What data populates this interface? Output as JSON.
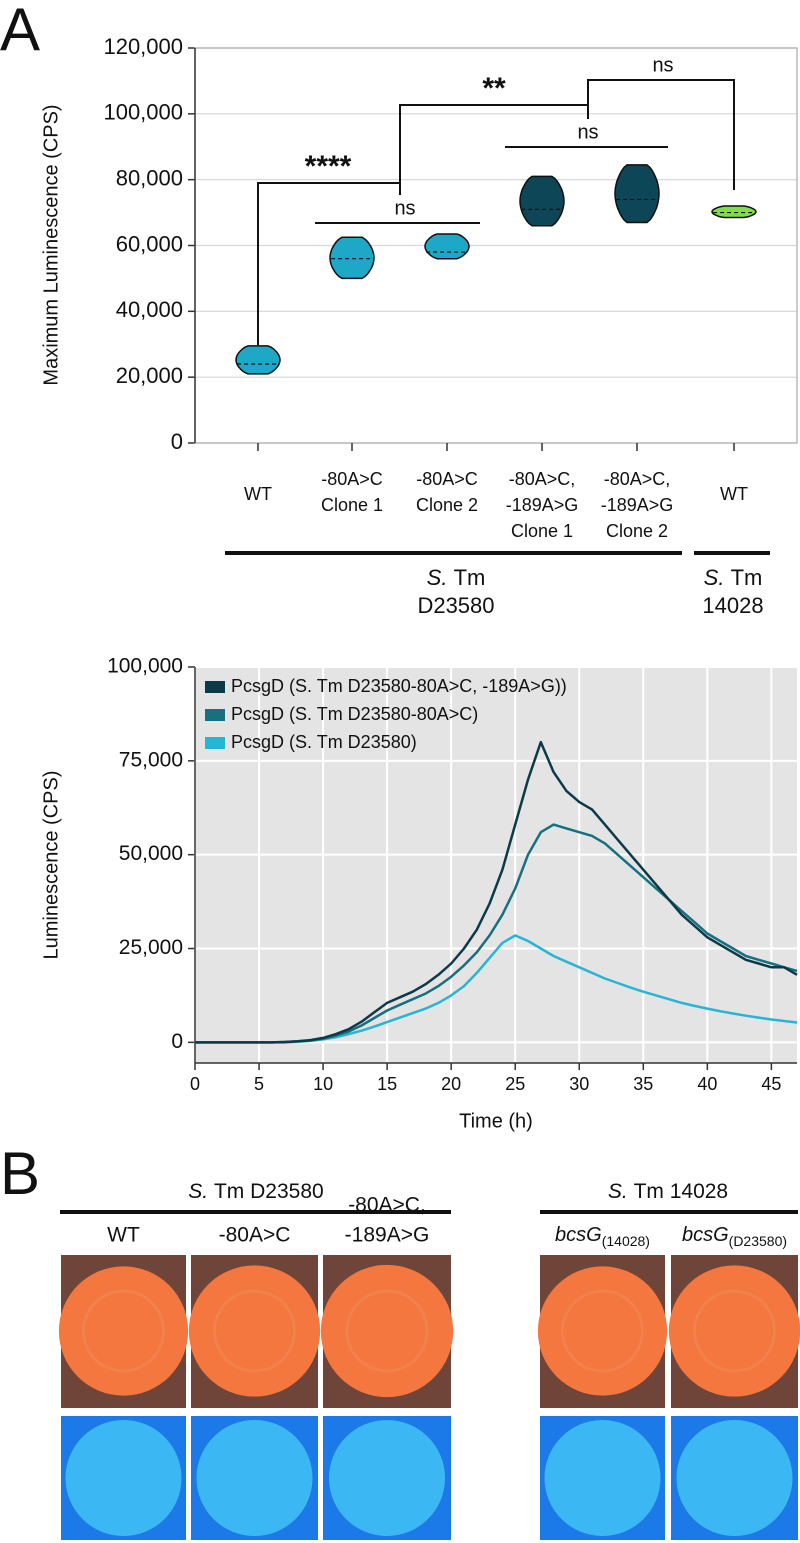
{
  "panel_labels": [
    "A",
    "B"
  ],
  "chart_data": [
    {
      "type": "violin",
      "ylabel": "Maximum Luminescence (CPS)",
      "categories": [
        [
          "WT"
        ],
        [
          "-80A>C",
          "Clone 1"
        ],
        [
          "-80A>C",
          "Clone 2"
        ],
        [
          "-80A>C,",
          "-189A>G",
          "Clone 1"
        ],
        [
          "-80A>C,",
          "-189A>G",
          "Clone 2"
        ],
        [
          "WT"
        ]
      ],
      "values": [
        24000,
        56000,
        58000,
        71000,
        74000,
        70000
      ],
      "min": [
        21000,
        50000,
        56000,
        66000,
        67000,
        68500
      ],
      "max": [
        29500,
        62500,
        63500,
        81000,
        84500,
        72000
      ],
      "colors": [
        "#1ea8c8",
        "#1ea8c8",
        "#1ea8c8",
        "#0d4656",
        "#0d4656",
        "#7ee044"
      ],
      "ylim": [
        0,
        120000
      ],
      "yticks": [
        0,
        {
          "value": 20000,
          "label": "20,000"
        },
        {
          "value": 40000,
          "label": "40,000"
        },
        {
          "value": 60000,
          "label": "60,000"
        },
        {
          "value": 80000,
          "label": "80,000"
        },
        {
          "value": 100000,
          "label": "100,000"
        },
        {
          "value": 120000,
          "label": "120,000"
        }
      ],
      "grid": true,
      "significance": [
        "****",
        "ns",
        "**",
        "ns",
        "ns"
      ],
      "groups": [
        {
          "italic": "S.",
          "text": "Tm",
          "strain": "D23580"
        },
        {
          "italic": "S.",
          "text": "Tm",
          "strain": "14028"
        }
      ]
    },
    {
      "type": "line",
      "xlabel": "Time (h)",
      "ylabel": "Luminescence (CPS)",
      "x": [
        0,
        1,
        2,
        3,
        4,
        5,
        6,
        7,
        8,
        9,
        10,
        11,
        12,
        13,
        14,
        15,
        16,
        17,
        18,
        19,
        20,
        21,
        22,
        23,
        24,
        25,
        26,
        27,
        28,
        29,
        30,
        31,
        32,
        33,
        34,
        35,
        36,
        37,
        38,
        39,
        40,
        41,
        42,
        43,
        44,
        45,
        46,
        47
      ],
      "series": [
        {
          "name": "PcsgD (S. Tm D23580-80A>C, -189A>G))",
          "color": "#0c3a48",
          "values": [
            0,
            0,
            0,
            0,
            0,
            0,
            0,
            100,
            300,
            600,
            1200,
            2200,
            3500,
            5500,
            8000,
            10500,
            12000,
            13500,
            15500,
            18000,
            21000,
            25000,
            30000,
            37000,
            46000,
            58000,
            70000,
            80000,
            72000,
            67000,
            64000,
            62000,
            58000,
            54000,
            50000,
            46000,
            42000,
            38000,
            34000,
            31000,
            28000,
            26000,
            24000,
            22000,
            21000,
            20000,
            20000,
            18000
          ]
        },
        {
          "name": "PcsgD (S. Tm D23580-80A>C)",
          "color": "#17707f",
          "values": [
            0,
            0,
            0,
            0,
            0,
            0,
            0,
            100,
            250,
            500,
            1000,
            1800,
            2900,
            4500,
            6500,
            8500,
            10000,
            11500,
            13000,
            15000,
            17500,
            20500,
            24000,
            28500,
            34000,
            41000,
            50000,
            56000,
            58000,
            57000,
            56000,
            55000,
            53000,
            50000,
            47000,
            44000,
            41000,
            38000,
            35000,
            32000,
            29000,
            27000,
            25000,
            23000,
            22000,
            21000,
            20000,
            19000
          ]
        },
        {
          "name": "PcsgD (S. Tm D23580)",
          "color": "#27b5d4",
          "values": [
            0,
            0,
            0,
            0,
            0,
            0,
            0,
            0,
            150,
            400,
            800,
            1400,
            2200,
            3100,
            4200,
            5400,
            6600,
            7800,
            9000,
            10500,
            12500,
            15000,
            18500,
            22500,
            26500,
            28500,
            27000,
            25000,
            23000,
            21500,
            20000,
            18500,
            17000,
            15800,
            14600,
            13500,
            12500,
            11500,
            10500,
            9700,
            9000,
            8300,
            7700,
            7100,
            6600,
            6100,
            5700,
            5300
          ]
        }
      ],
      "xlim": [
        0,
        47
      ],
      "xticks": [
        0,
        5,
        10,
        15,
        20,
        25,
        30,
        35,
        40,
        45
      ],
      "ylim": [
        -5500,
        100000
      ],
      "yticks": [
        0,
        {
          "value": 25000,
          "label": "25,000"
        },
        {
          "value": 50000,
          "label": "50,000"
        },
        {
          "value": 75000,
          "label": "75,000"
        },
        {
          "value": 100000,
          "label": "100,000"
        }
      ],
      "grid": true,
      "legend": "upper left",
      "plot_background": "#e4e4e4"
    }
  ],
  "panel_b": {
    "groups": [
      {
        "italic": "S.",
        "text": "Tm D23580",
        "columns": [
          [
            "WT"
          ],
          [
            "-80A>C"
          ],
          [
            "-80A>C,",
            "-189A>G"
          ]
        ]
      },
      {
        "italic": "S.",
        "text": "Tm 14028",
        "columns": [
          {
            "gene": "bcsG",
            "sub": "(14028)"
          },
          {
            "gene": "bcsG",
            "sub": "(D23580)"
          }
        ]
      }
    ]
  }
}
